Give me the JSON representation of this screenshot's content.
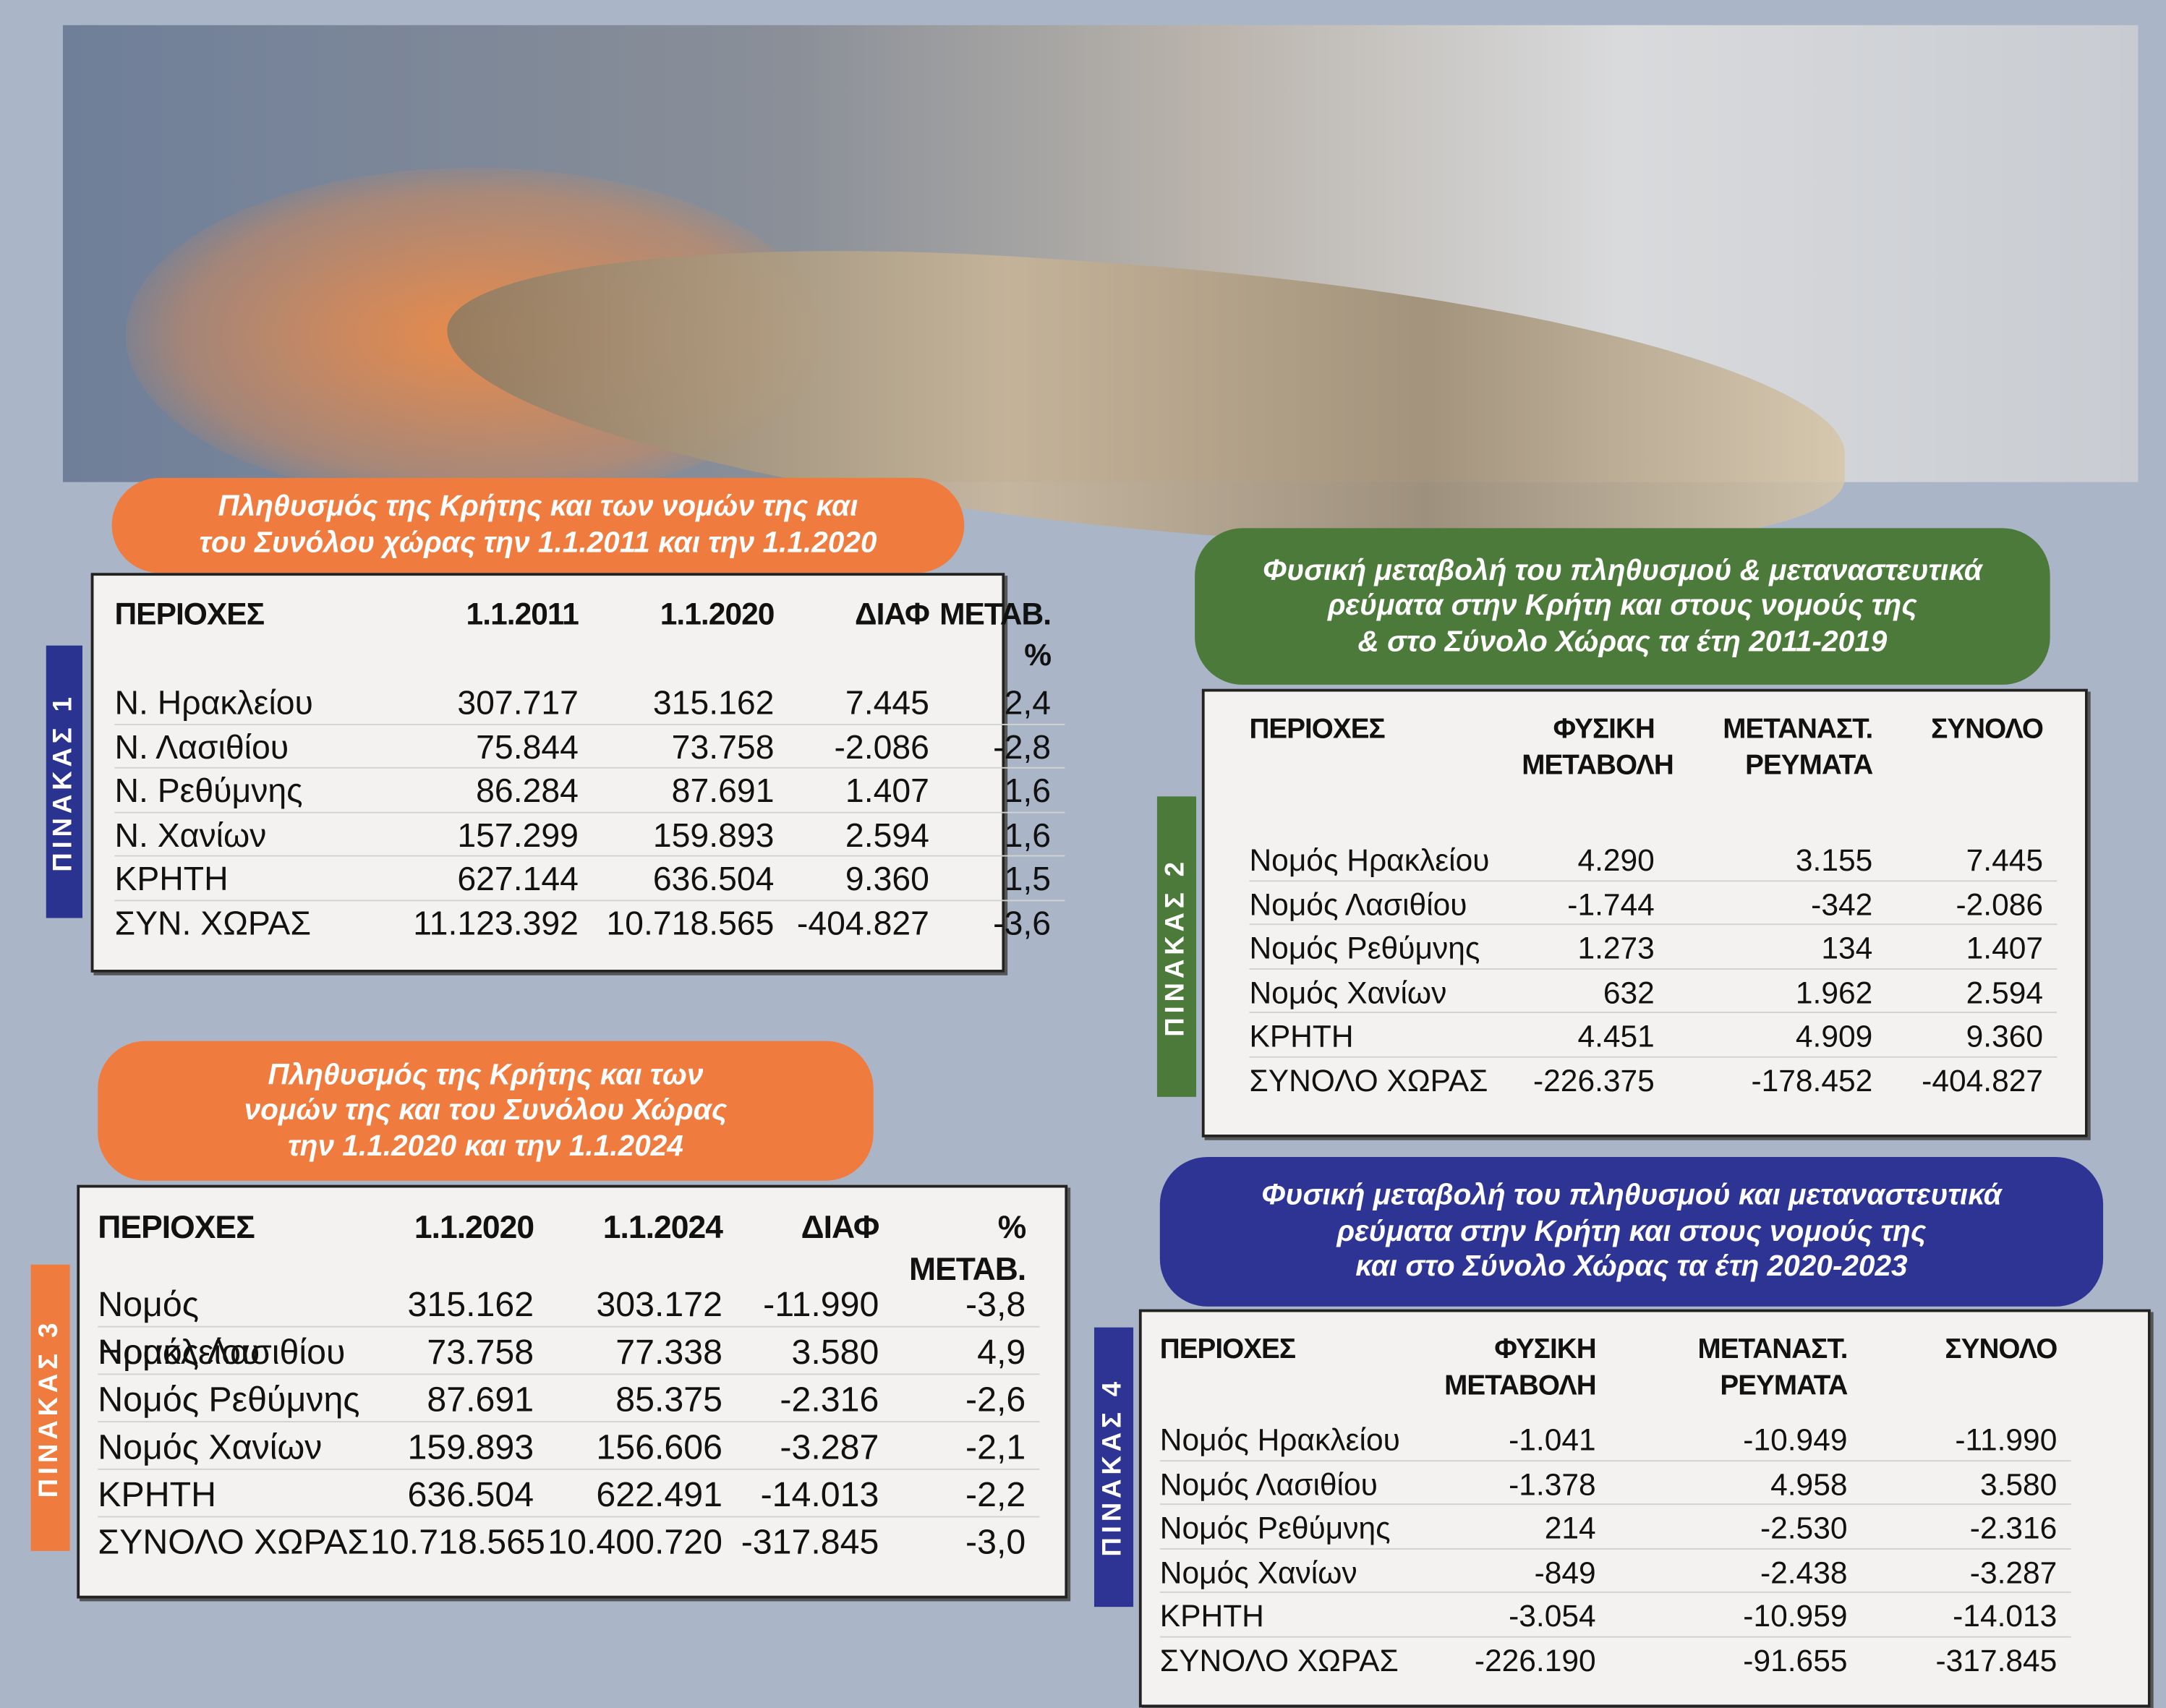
{
  "tables": [
    {
      "label": "ΠΙΝΑΚΑΣ 1",
      "title": [
        "Πληθυσμός της Κρήτης και των νομών της και",
        "του Συνόλου χώρας την 1.1.2011 και την 1.1.2020"
      ],
      "header": [
        "ΠΕΡΙΟΧΕΣ",
        "1.1.2011",
        "1.1.2020",
        "ΔΙΑΦ",
        "ΜΕΤΑΒ.\n%"
      ],
      "rows": [
        [
          "Ν. Ηρακλείου",
          "307.717",
          "315.162",
          "7.445",
          "2,4"
        ],
        [
          "Ν. Λασιθίου",
          "75.844",
          "73.758",
          "-2.086",
          "-2,8"
        ],
        [
          "Ν. Ρεθύμνης",
          "86.284",
          "87.691",
          "1.407",
          "1,6"
        ],
        [
          "Ν. Χανίων",
          "157.299",
          "159.893",
          "2.594",
          "1,6"
        ],
        [
          "ΚΡΗΤΗ",
          "627.144",
          "636.504",
          "9.360",
          "1,5"
        ],
        [
          "ΣΥΝ. ΧΩΡΑΣ",
          "11.123.392",
          "10.718.565",
          "-404.827",
          "-3,6"
        ]
      ]
    },
    {
      "label": "ΠΙΝΑΚΑΣ 2",
      "title": [
        "Φυσική μεταβολή του πληθυσμού & μεταναστευτικά",
        "ρεύματα στην Κρήτη  και στους νομούς της",
        "&  στο Σύνολο Χώρας  τα έτη 2011-2019"
      ],
      "header": [
        "ΠΕΡΙΟΧΕΣ",
        "ΦΥΣΙΚΗ\nΜΕΤΑΒΟΛΗ",
        "ΜΕΤΑΝΑΣΤ.\nΡΕΥΜΑΤΑ",
        "ΣΥΝΟΛΟ"
      ],
      "rows": [
        [
          "Νομός Ηρακλείου",
          "4.290",
          "3.155",
          "7.445"
        ],
        [
          "Νομός Λασιθίου",
          "-1.744",
          "-342",
          "-2.086"
        ],
        [
          "Νομός Ρεθύμνης",
          "1.273",
          "134",
          "1.407"
        ],
        [
          "Νομός Χανίων",
          "632",
          "1.962",
          "2.594"
        ],
        [
          "ΚΡΗΤΗ",
          "4.451",
          "4.909",
          "9.360"
        ],
        [
          "ΣΥΝΟΛΟ ΧΩΡΑΣ",
          "-226.375",
          "-178.452",
          "-404.827"
        ]
      ]
    },
    {
      "label": "ΠΙΝΑΚΑΣ 3",
      "title": [
        "Πληθυσμός της Κρήτης και των",
        "νομών της και του  Συνόλου Χώρας",
        "την 1.1.2020 και την 1.1.2024"
      ],
      "header": [
        "ΠΕΡΙΟΧΕΣ",
        "1.1.2020",
        "1.1.2024",
        "ΔΙΑΦ",
        "% ΜΕΤΑΒ."
      ],
      "rows": [
        [
          "Νομός Ηρακλείου",
          "315.162",
          "303.172",
          "-11.990",
          "-3,8"
        ],
        [
          "Νομός Λασιθίου",
          "73.758",
          "77.338",
          "3.580",
          "4,9"
        ],
        [
          "Νομός Ρεθύμνης",
          "87.691",
          "85.375",
          "-2.316",
          "-2,6"
        ],
        [
          "Νομός Χανίων",
          "159.893",
          "156.606",
          "-3.287",
          "-2,1"
        ],
        [
          "ΚΡΗΤΗ",
          "636.504",
          "622.491",
          "-14.013",
          "-2,2"
        ],
        [
          "ΣΥΝΟΛΟ ΧΩΡΑΣ",
          "10.718.565",
          "10.400.720",
          "-317.845",
          "-3,0"
        ]
      ]
    },
    {
      "label": "ΠΙΝΑΚΑΣ 4",
      "title": [
        "Φυσική μεταβολή του πληθυσμού και μεταναστευτικά",
        "ρεύματα στην Κρήτη και στους νομούς της",
        "και στο Σύνολο Χώρας τα έτη 2020-2023"
      ],
      "header": [
        "ΠΕΡΙΟΧΕΣ",
        "ΦΥΣΙΚΗ\nΜΕΤΑΒΟΛΗ",
        "ΜΕΤΑΝΑΣΤ.\nΡΕΥΜΑΤΑ",
        "ΣΥΝΟΛΟ"
      ],
      "rows": [
        [
          "Νομός Ηρακλείου",
          "-1.041",
          "-10.949",
          "-11.990"
        ],
        [
          "Νομός Λασιθίου",
          "-1.378",
          "4.958",
          "3.580"
        ],
        [
          "Νομός Ρεθύμνης",
          "214",
          "-2.530",
          "-2.316"
        ],
        [
          "Νομός Χανίων",
          "-849",
          "-2.438",
          "-3.287"
        ],
        [
          "ΚΡΗΤΗ",
          "-3.054",
          "-10.959",
          "-14.013"
        ],
        [
          "ΣΥΝΟΛΟ ΧΩΡΑΣ",
          "-226.190",
          "-91.655",
          "-317.845"
        ]
      ]
    }
  ]
}
